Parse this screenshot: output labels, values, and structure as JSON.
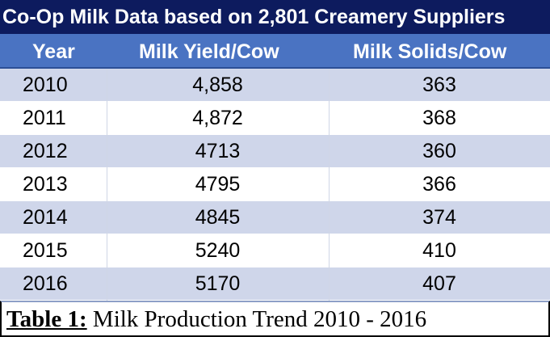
{
  "title": "Co-Op Milk Data based on 2,801 Creamery Suppliers",
  "headers": {
    "year": "Year",
    "yield": "Milk Yield/Cow",
    "solids": "Milk  Solids/Cow"
  },
  "caption": {
    "label": "Table 1:",
    "text": " Milk Production Trend 2010 - 2016"
  },
  "colors": {
    "title_bg": "#0d1b5e",
    "header_bg": "#4a73c2",
    "row_band_a": "#cfd6ea",
    "row_band_b": "#e9ecf5"
  },
  "chart_data": {
    "type": "table",
    "title": "Co-Op Milk Data based on 2,801 Creamery Suppliers",
    "columns": [
      "Year",
      "Milk Yield/Cow",
      "Milk  Solids/Cow"
    ],
    "rows": [
      {
        "year": "2010",
        "yield": "4,858",
        "solids": "363"
      },
      {
        "year": "2011",
        "yield": "4,872",
        "solids": "368"
      },
      {
        "year": "2012",
        "yield": "4713",
        "solids": "360"
      },
      {
        "year": "2013",
        "yield": "4795",
        "solids": "366"
      },
      {
        "year": "2014",
        "yield": "4845",
        "solids": "374"
      },
      {
        "year": "2015",
        "yield": "5240",
        "solids": "410"
      },
      {
        "year": "2016",
        "yield": "5170",
        "solids": "407"
      }
    ]
  }
}
